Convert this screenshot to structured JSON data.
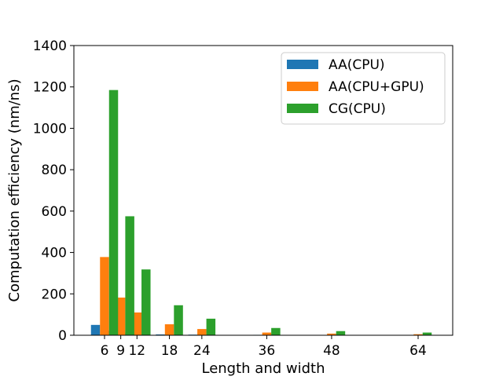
{
  "chart_data": {
    "type": "bar",
    "title": "",
    "xlabel": "Length and width",
    "ylabel": "Computation efficiency (nm/ns)",
    "ylim": [
      0,
      1400
    ],
    "yticks": [
      0,
      200,
      400,
      600,
      800,
      1000,
      1200,
      1400
    ],
    "x_scale": "categorical positioned by value (6, 9, 12, 18, 24, 36, 48, 64)",
    "categories": [
      "6",
      "9",
      "12",
      "18",
      "24",
      "36",
      "48",
      "64"
    ],
    "series": [
      {
        "name": "AA(CPU)",
        "color": "#1f77b4",
        "values": [
          50,
          22,
          12,
          4,
          3,
          2,
          1,
          1
        ]
      },
      {
        "name": "AA(CPU+GPU)",
        "color": "#ff7f0e",
        "values": [
          378,
          182,
          110,
          53,
          30,
          13,
          8,
          5
        ]
      },
      {
        "name": "CG(CPU)",
        "color": "#2ca02c",
        "values": [
          1185,
          575,
          318,
          145,
          80,
          35,
          20,
          13
        ]
      }
    ],
    "legend": {
      "position": "top-right"
    },
    "grid": false
  }
}
